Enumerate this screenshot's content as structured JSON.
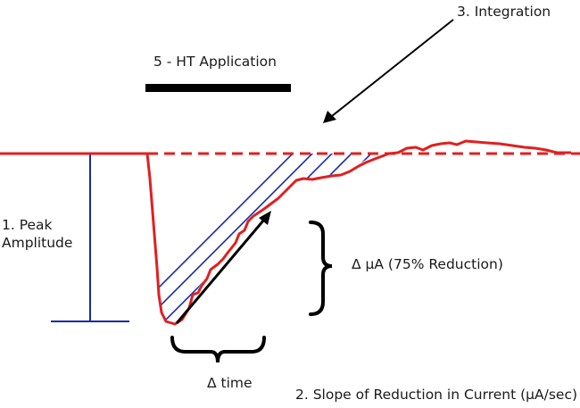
{
  "labels": {
    "integration": "3. Integration",
    "ht_application": "5 - HT Application",
    "peak_line1": "1. Peak",
    "peak_line2": "Amplitude",
    "delta_ua": "Δ µA (75% Reduction)",
    "delta_time": "Δ time",
    "slope": "2. Slope of Reduction in Current (µA/sec)"
  },
  "colors": {
    "current_trace": "#e02020",
    "baseline_dashed": "#e02020",
    "hatch": "#1a2aa8",
    "peak_bar": "#1a2aa8",
    "black": "#000000"
  }
}
